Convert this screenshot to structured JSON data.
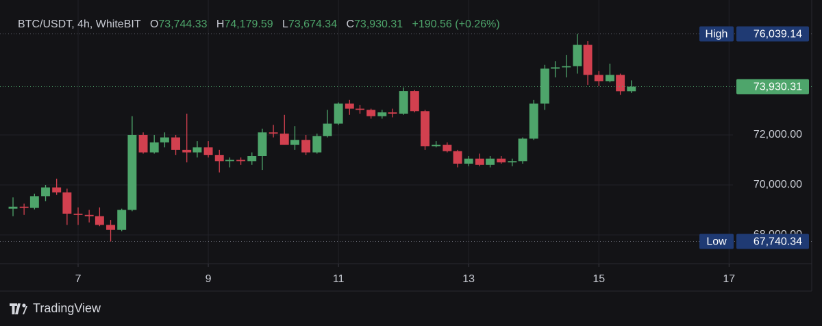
{
  "header": {
    "symbol": "BTC/USDT, 4h, WhiteBIT",
    "open_label": "O",
    "open": "73,744.33",
    "high_label": "H",
    "high": "74,179.59",
    "low_label": "L",
    "low": "73,674.34",
    "close_label": "C",
    "close": "73,930.31",
    "change": "+190.56 (+0.26%)"
  },
  "chart_data": {
    "type": "candlestick",
    "x": [
      6,
      6.17,
      6.33,
      6.5,
      6.67,
      6.83,
      7,
      7.17,
      7.33,
      7.5,
      7.67,
      7.83,
      8,
      8.17,
      8.33,
      8.5,
      8.67,
      8.83,
      9,
      9.17,
      9.33,
      9.5,
      9.67,
      9.83,
      10,
      10.17,
      10.33,
      10.5,
      10.67,
      10.83,
      11,
      11.17,
      11.33,
      11.5,
      11.67,
      11.83,
      12,
      12.17,
      12.33,
      12.5,
      12.67,
      12.83,
      13,
      13.17,
      13.33,
      13.5,
      13.67,
      13.83,
      14,
      14.17,
      14.33,
      14.5,
      14.67,
      14.83,
      15,
      15.17,
      15.33,
      15.5
    ],
    "open": [
      69050,
      69130,
      69080,
      69550,
      69900,
      69700,
      68850,
      68800,
      68750,
      68400,
      68200,
      69000,
      72000,
      71300,
      71700,
      71900,
      71400,
      71300,
      71500,
      71200,
      70950,
      71000,
      70950,
      71150,
      72100,
      72050,
      71600,
      71800,
      71300,
      71950,
      72450,
      73250,
      73050,
      73000,
      72750,
      72900,
      72850,
      73750,
      72950,
      71550,
      71600,
      71350,
      70850,
      71050,
      70800,
      71050,
      70900,
      70950,
      71850,
      73250,
      74650,
      74700,
      74750,
      75600,
      74400,
      74150,
      74400,
      73744.33
    ],
    "high": [
      69500,
      69250,
      69650,
      70000,
      70250,
      69850,
      69100,
      69000,
      69100,
      68600,
      69050,
      72750,
      72100,
      72000,
      72100,
      72000,
      72850,
      71750,
      71750,
      71400,
      71100,
      71100,
      71300,
      72250,
      72400,
      72800,
      72350,
      72000,
      72050,
      73000,
      73300,
      73400,
      73200,
      73050,
      73000,
      73050,
      73900,
      73800,
      73000,
      71750,
      71700,
      71400,
      71150,
      71250,
      71150,
      71150,
      71050,
      71900,
      73400,
      74800,
      74950,
      75200,
      76039.14,
      75750,
      74550,
      74850,
      74450,
      74179.59
    ],
    "low": [
      68750,
      68800,
      69020,
      69350,
      69600,
      68400,
      68400,
      68500,
      68350,
      67740.34,
      68150,
      68950,
      71250,
      71250,
      71500,
      71200,
      70900,
      71100,
      71100,
      70500,
      70700,
      70800,
      70800,
      70600,
      71900,
      71600,
      71400,
      71200,
      71250,
      71900,
      72400,
      72800,
      72850,
      72650,
      72650,
      72700,
      72800,
      72900,
      71400,
      71500,
      71300,
      70700,
      70750,
      70750,
      70700,
      70850,
      70750,
      70850,
      71800,
      73000,
      74300,
      74300,
      74450,
      74000,
      73950,
      74100,
      73600,
      73674.34
    ],
    "close": [
      69130,
      69080,
      69550,
      69900,
      69700,
      68850,
      68800,
      68750,
      68400,
      68200,
      69000,
      72000,
      71300,
      71700,
      71900,
      71400,
      71300,
      71500,
      71200,
      70950,
      71000,
      70950,
      71150,
      72100,
      72050,
      71600,
      71800,
      71300,
      71950,
      72450,
      73250,
      73050,
      73000,
      72750,
      72900,
      72850,
      73750,
      72950,
      71550,
      71600,
      71350,
      70850,
      71050,
      70800,
      71050,
      70900,
      70950,
      71850,
      73250,
      74650,
      74700,
      74750,
      75600,
      74400,
      74150,
      74400,
      73744.33,
      73930.31
    ],
    "up_color": "#4ea56b",
    "down_color": "#d2404f",
    "xlim": [
      5.8,
      17.06
    ],
    "xticks": [
      7,
      9,
      11,
      13,
      15,
      17
    ],
    "ylim": [
      66850,
      76710
    ],
    "yticks": [
      {
        "value": 68000,
        "label": "68,000.00"
      },
      {
        "value": 70000,
        "label": "70,000.00"
      },
      {
        "value": 72000,
        "label": "72,000.00"
      }
    ],
    "grid": true,
    "price_labels": [
      {
        "label": "High",
        "value": 76039.14,
        "value_label": "76,039.14",
        "color": "#1f3a73"
      },
      {
        "value": 73930.31,
        "value_label": "73,930.31",
        "color": "#4ea56b"
      },
      {
        "label": "Low",
        "value": 67740.34,
        "value_label": "67,740.34",
        "color": "#1f3a73"
      }
    ]
  },
  "footer": {
    "brand": "TradingView"
  }
}
